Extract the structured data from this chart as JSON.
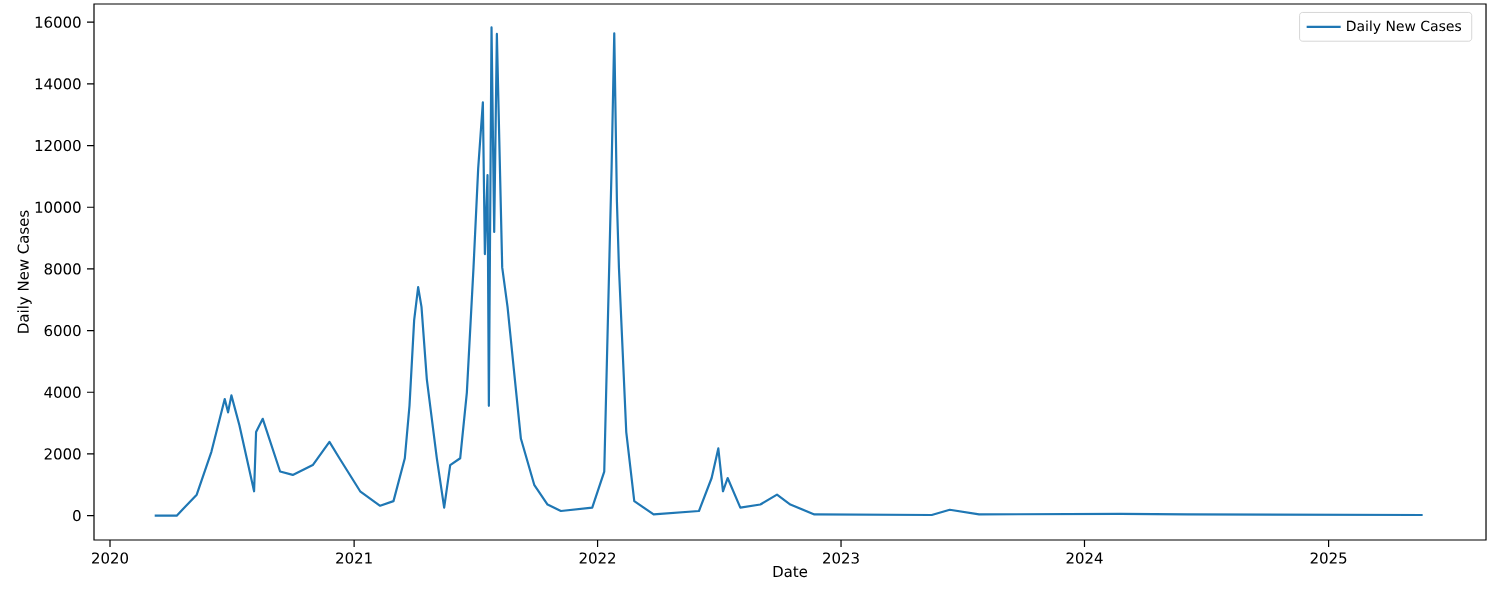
{
  "chart_data": {
    "type": "line",
    "xlabel": "Date",
    "ylabel": "Daily New Cases",
    "legend": "top right",
    "grid": false,
    "marker": "none",
    "line_style": "solid",
    "xlim": [
      "2019-12-08",
      "2025-08-25"
    ],
    "xticks": [
      "2020",
      "2021",
      "2022",
      "2023",
      "2024",
      "2025"
    ],
    "ylim": [
      -790,
      16590
    ],
    "yticks": [
      0,
      2000,
      4000,
      6000,
      8000,
      10000,
      12000,
      14000,
      16000
    ],
    "series": [
      {
        "name": "Daily New Cases",
        "color": "#1f77b4",
        "x": [
          "2020-03-08",
          "2020-04-10",
          "2020-05-10",
          "2020-06-01",
          "2020-06-21",
          "2020-06-26",
          "2020-07-01",
          "2020-07-13",
          "2020-08-04",
          "2020-08-07",
          "2020-08-17",
          "2020-09-12",
          "2020-10-01",
          "2020-10-31",
          "2020-11-25",
          "2020-12-10",
          "2021-01-10",
          "2021-02-09",
          "2021-03-01",
          "2021-03-18",
          "2021-03-25",
          "2021-04-01",
          "2021-04-07",
          "2021-04-12",
          "2021-04-20",
          "2021-05-05",
          "2021-05-16",
          "2021-05-25",
          "2021-06-09",
          "2021-06-19",
          "2021-06-29",
          "2021-07-06",
          "2021-07-13",
          "2021-07-16",
          "2021-07-20",
          "2021-07-22",
          "2021-07-26",
          "2021-07-30",
          "2021-08-03",
          "2021-08-11",
          "2021-08-19",
          "2021-08-29",
          "2021-09-08",
          "2021-09-28",
          "2021-10-18",
          "2021-11-07",
          "2021-12-24",
          "2022-01-11",
          "2022-01-16",
          "2022-01-22",
          "2022-01-26",
          "2022-01-30",
          "2022-02-02",
          "2022-02-13",
          "2022-02-25",
          "2022-03-26",
          "2022-06-02",
          "2022-06-21",
          "2022-07-01",
          "2022-07-08",
          "2022-07-15",
          "2022-08-03",
          "2022-09-02",
          "2022-09-27",
          "2022-10-17",
          "2022-11-22",
          "2023-05-17",
          "2023-06-13",
          "2023-07-27",
          "2024-02-24",
          "2024-06-03",
          "2025-05-22"
        ],
        "values": [
          0,
          0,
          680,
          2070,
          3780,
          3350,
          3900,
          2930,
          790,
          2710,
          3140,
          1430,
          1320,
          1640,
          2390,
          1860,
          790,
          320,
          470,
          1860,
          3560,
          6340,
          7410,
          6770,
          4420,
          1860,
          260,
          1640,
          1860,
          3990,
          8050,
          11260,
          13400,
          8480,
          11040,
          3560,
          15830,
          9200,
          15620,
          8050,
          6770,
          4630,
          2500,
          1000,
          360,
          150,
          260,
          1430,
          5920,
          11260,
          15640,
          10190,
          8050,
          2710,
          470,
          40,
          150,
          1220,
          2180,
          790,
          1220,
          260,
          360,
          680,
          360,
          40,
          20,
          190,
          40,
          60,
          40,
          20
        ]
      }
    ]
  }
}
